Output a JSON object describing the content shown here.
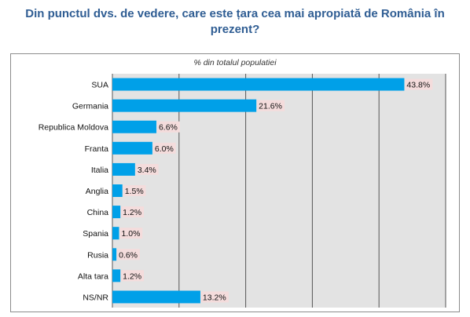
{
  "title": "Din punctul dvs. de vedere, care este țara cea mai apropiată de România în prezent?",
  "subtitle": "% din totalul populatiei",
  "colors": {
    "bar": "#00a0e8",
    "plot_bg": "#e3e3e3",
    "label_bg": "#f4dcdc",
    "title": "#2f5d93"
  },
  "chart_data": {
    "type": "bar",
    "orientation": "horizontal",
    "title": "Din punctul dvs. de vedere, care este țara cea mai apropiată de România în prezent?",
    "subtitle": "% din totalul populatiei",
    "categories": [
      "SUA",
      "Germania",
      "Republica Moldova",
      "Franta",
      "Italia",
      "Anglia",
      "China",
      "Spania",
      "Rusia",
      "Alta tara",
      "NS/NR"
    ],
    "values": [
      43.8,
      21.6,
      6.6,
      6.0,
      3.4,
      1.5,
      1.2,
      1.0,
      0.6,
      1.2,
      13.2
    ],
    "value_labels": [
      "43.8%",
      "21.6%",
      "6.6%",
      "6.0%",
      "3.4%",
      "1.5%",
      "1.2%",
      "1.0%",
      "0.6%",
      "1.2%",
      "13.2%"
    ],
    "xlim": [
      0,
      50
    ],
    "grid": true,
    "legend": "none"
  }
}
